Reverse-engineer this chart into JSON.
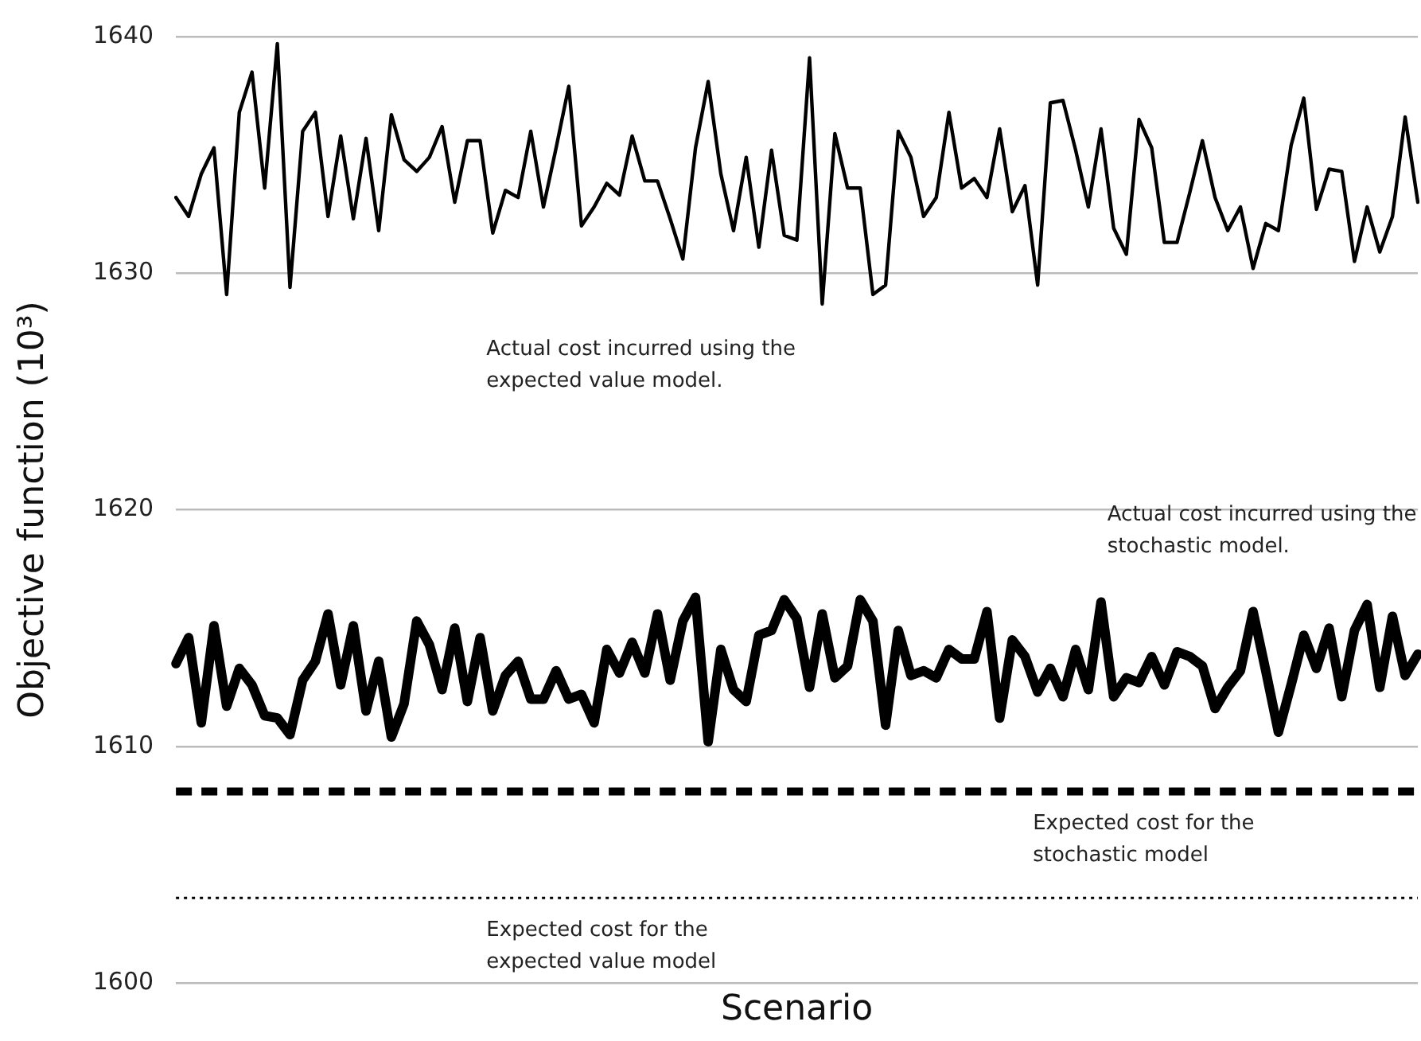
{
  "chart_data": {
    "type": "line",
    "xlabel": "Scenario",
    "ylabel": "Objective function (10³)",
    "categories": [
      null,
      null,
      null,
      null,
      null,
      null,
      null,
      null,
      null,
      null,
      null,
      null,
      null,
      null,
      null,
      null,
      null,
      null,
      null,
      null,
      null,
      null,
      null,
      null,
      null,
      null,
      null,
      null,
      null,
      null,
      null,
      null,
      null,
      null,
      null,
      null,
      null,
      null,
      null,
      null,
      null,
      null,
      null,
      null,
      null,
      null,
      null,
      null,
      null,
      null,
      null,
      null,
      null,
      null,
      null,
      null,
      null,
      null,
      null,
      null,
      null,
      null,
      null,
      null,
      null,
      null,
      null,
      null,
      null,
      null,
      null,
      null,
      null,
      null,
      null,
      null,
      null,
      null,
      null,
      null,
      null,
      null,
      null,
      null,
      null,
      null,
      null,
      null,
      null,
      null,
      null,
      null,
      null,
      null,
      null,
      null,
      null,
      null,
      null
    ],
    "ylim": [
      1600,
      1640
    ],
    "yticks": [
      1600,
      1610,
      1620,
      1630,
      1640
    ],
    "grid": "y",
    "tick_labels": "y",
    "marker": "none",
    "line_style": "solid",
    "series": [
      {
        "name": "Actual cost incurred using the expected value model.",
        "color": "#000000",
        "values": [
          1633.2,
          1632.4,
          1634.2,
          1635.3,
          1629.1,
          1636.8,
          1638.5,
          1633.6,
          1639.7,
          1629.4,
          1636.0,
          1636.8,
          1632.4,
          1635.8,
          1632.3,
          1635.7,
          1631.8,
          1636.7,
          1634.8,
          1634.3,
          1634.9,
          1636.2,
          1633.0,
          1635.6,
          1635.6,
          1631.7,
          1633.5,
          1633.2,
          1636.0,
          1632.8,
          1635.3,
          1637.9,
          1632.0,
          1632.8,
          1633.8,
          1633.3,
          1635.8,
          1633.9,
          1633.9,
          1632.3,
          1630.6,
          1635.3,
          1638.1,
          1634.2,
          1631.8,
          1634.9,
          1631.1,
          1635.2,
          1631.6,
          1631.4,
          1639.1,
          1628.7,
          1635.9,
          1633.6,
          1633.6,
          1629.1,
          1629.5,
          1636.0,
          1634.9,
          1632.4,
          1633.2,
          1636.8,
          1633.6,
          1634.0,
          1633.2,
          1636.1,
          1632.6,
          1633.7,
          1629.5,
          1637.2,
          1637.3,
          1635.2,
          1632.8,
          1636.1,
          1631.9,
          1630.8,
          1636.5,
          1635.3,
          1631.3,
          1631.3,
          1633.4,
          1635.6,
          1633.2,
          1631.8,
          1632.8,
          1630.2,
          1632.1,
          1631.8,
          1635.4,
          1637.4,
          1632.7,
          1634.4,
          1634.3,
          1630.5,
          1632.8,
          1630.9,
          1632.4,
          1636.6,
          1633.0
        ]
      },
      {
        "name": "Actual cost incurred using the stochastic model.",
        "color": "#000000",
        "values": [
          1613.5,
          1614.6,
          1611.0,
          1615.1,
          1611.7,
          1613.3,
          1612.6,
          1611.3,
          1611.2,
          1610.5,
          1612.8,
          1613.6,
          1615.6,
          1612.6,
          1615.1,
          1611.5,
          1613.6,
          1610.4,
          1611.8,
          1615.3,
          1614.3,
          1612.4,
          1615.0,
          1611.9,
          1614.6,
          1611.5,
          1613.0,
          1613.6,
          1612.0,
          1612.0,
          1613.2,
          1612.0,
          1612.2,
          1611.0,
          1614.1,
          1613.1,
          1614.4,
          1613.1,
          1615.6,
          1612.8,
          1615.3,
          1616.3,
          1610.2,
          1614.1,
          1612.4,
          1611.9,
          1614.7,
          1614.9,
          1616.2,
          1615.4,
          1612.5,
          1615.6,
          1612.9,
          1613.4,
          1616.2,
          1615.3,
          1610.9,
          1614.9,
          1613.0,
          1613.2,
          1612.9,
          1614.1,
          1613.7,
          1613.7,
          1615.7,
          1611.2,
          1614.5,
          1613.8,
          1612.3,
          1613.3,
          1612.1,
          1614.1,
          1612.4,
          1616.1,
          1612.1,
          1612.9,
          1612.7,
          1613.8,
          1612.6,
          1614.0,
          1613.8,
          1613.4,
          1611.6,
          1612.5,
          1613.2,
          1615.7,
          1613.2,
          1610.6,
          1612.6,
          1614.7,
          1613.3,
          1615.0,
          1612.1,
          1614.9,
          1616.0,
          1612.5,
          1615.5,
          1613.0,
          1613.9
        ]
      }
    ],
    "ref_lines": [
      {
        "axis": "y",
        "value": 1608.1,
        "label": "Expected cost for the stochastic model",
        "color": "#000000",
        "line_style": "dashed"
      },
      {
        "axis": "y",
        "value": 1603.6,
        "label": "Expected cost for the expected value model",
        "color": "#000000",
        "line_style": "dotted"
      }
    ]
  }
}
